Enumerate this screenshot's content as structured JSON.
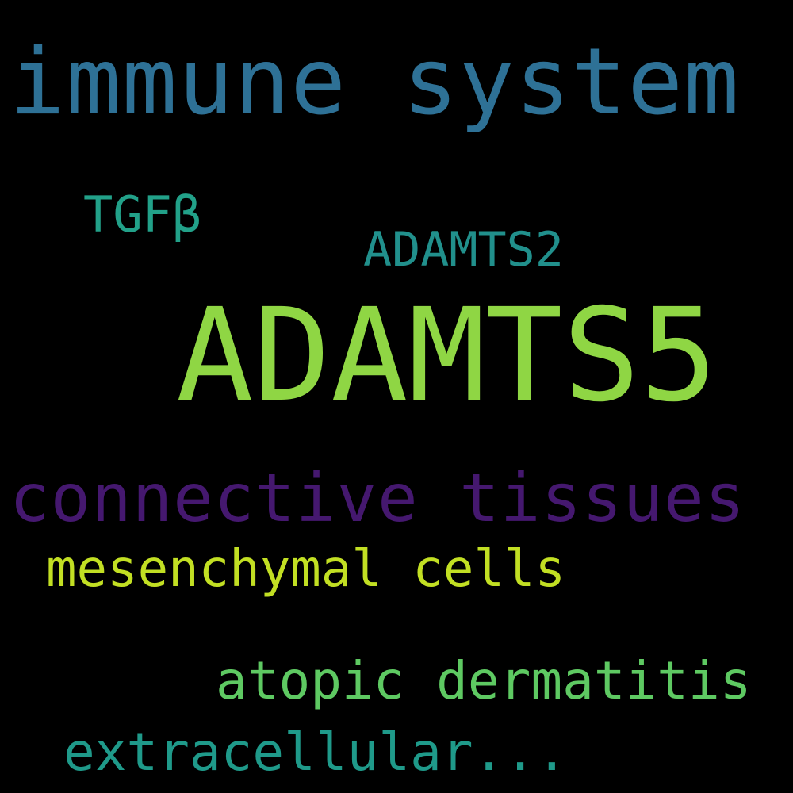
{
  "background": "#000000",
  "words": {
    "immune_system": {
      "text": "immune system",
      "color": "#2e7196"
    },
    "tgf_beta": {
      "text": "TGFβ",
      "color": "#22a189"
    },
    "adamts2": {
      "text": "ADAMTS2",
      "color": "#21908c"
    },
    "adamts5": {
      "text": "ADAMTS5",
      "color": "#8fd644"
    },
    "connective_tissues": {
      "text": "connective tissues",
      "color": "#45186f"
    },
    "mesenchymal_cells": {
      "text": "mesenchymal cells",
      "color": "#c2df23"
    },
    "atopic_dermatitis": {
      "text": "atopic dermatitis",
      "color": "#5ec962"
    },
    "extracellular": {
      "text": "extracellular...",
      "color": "#1f9a8a"
    }
  }
}
